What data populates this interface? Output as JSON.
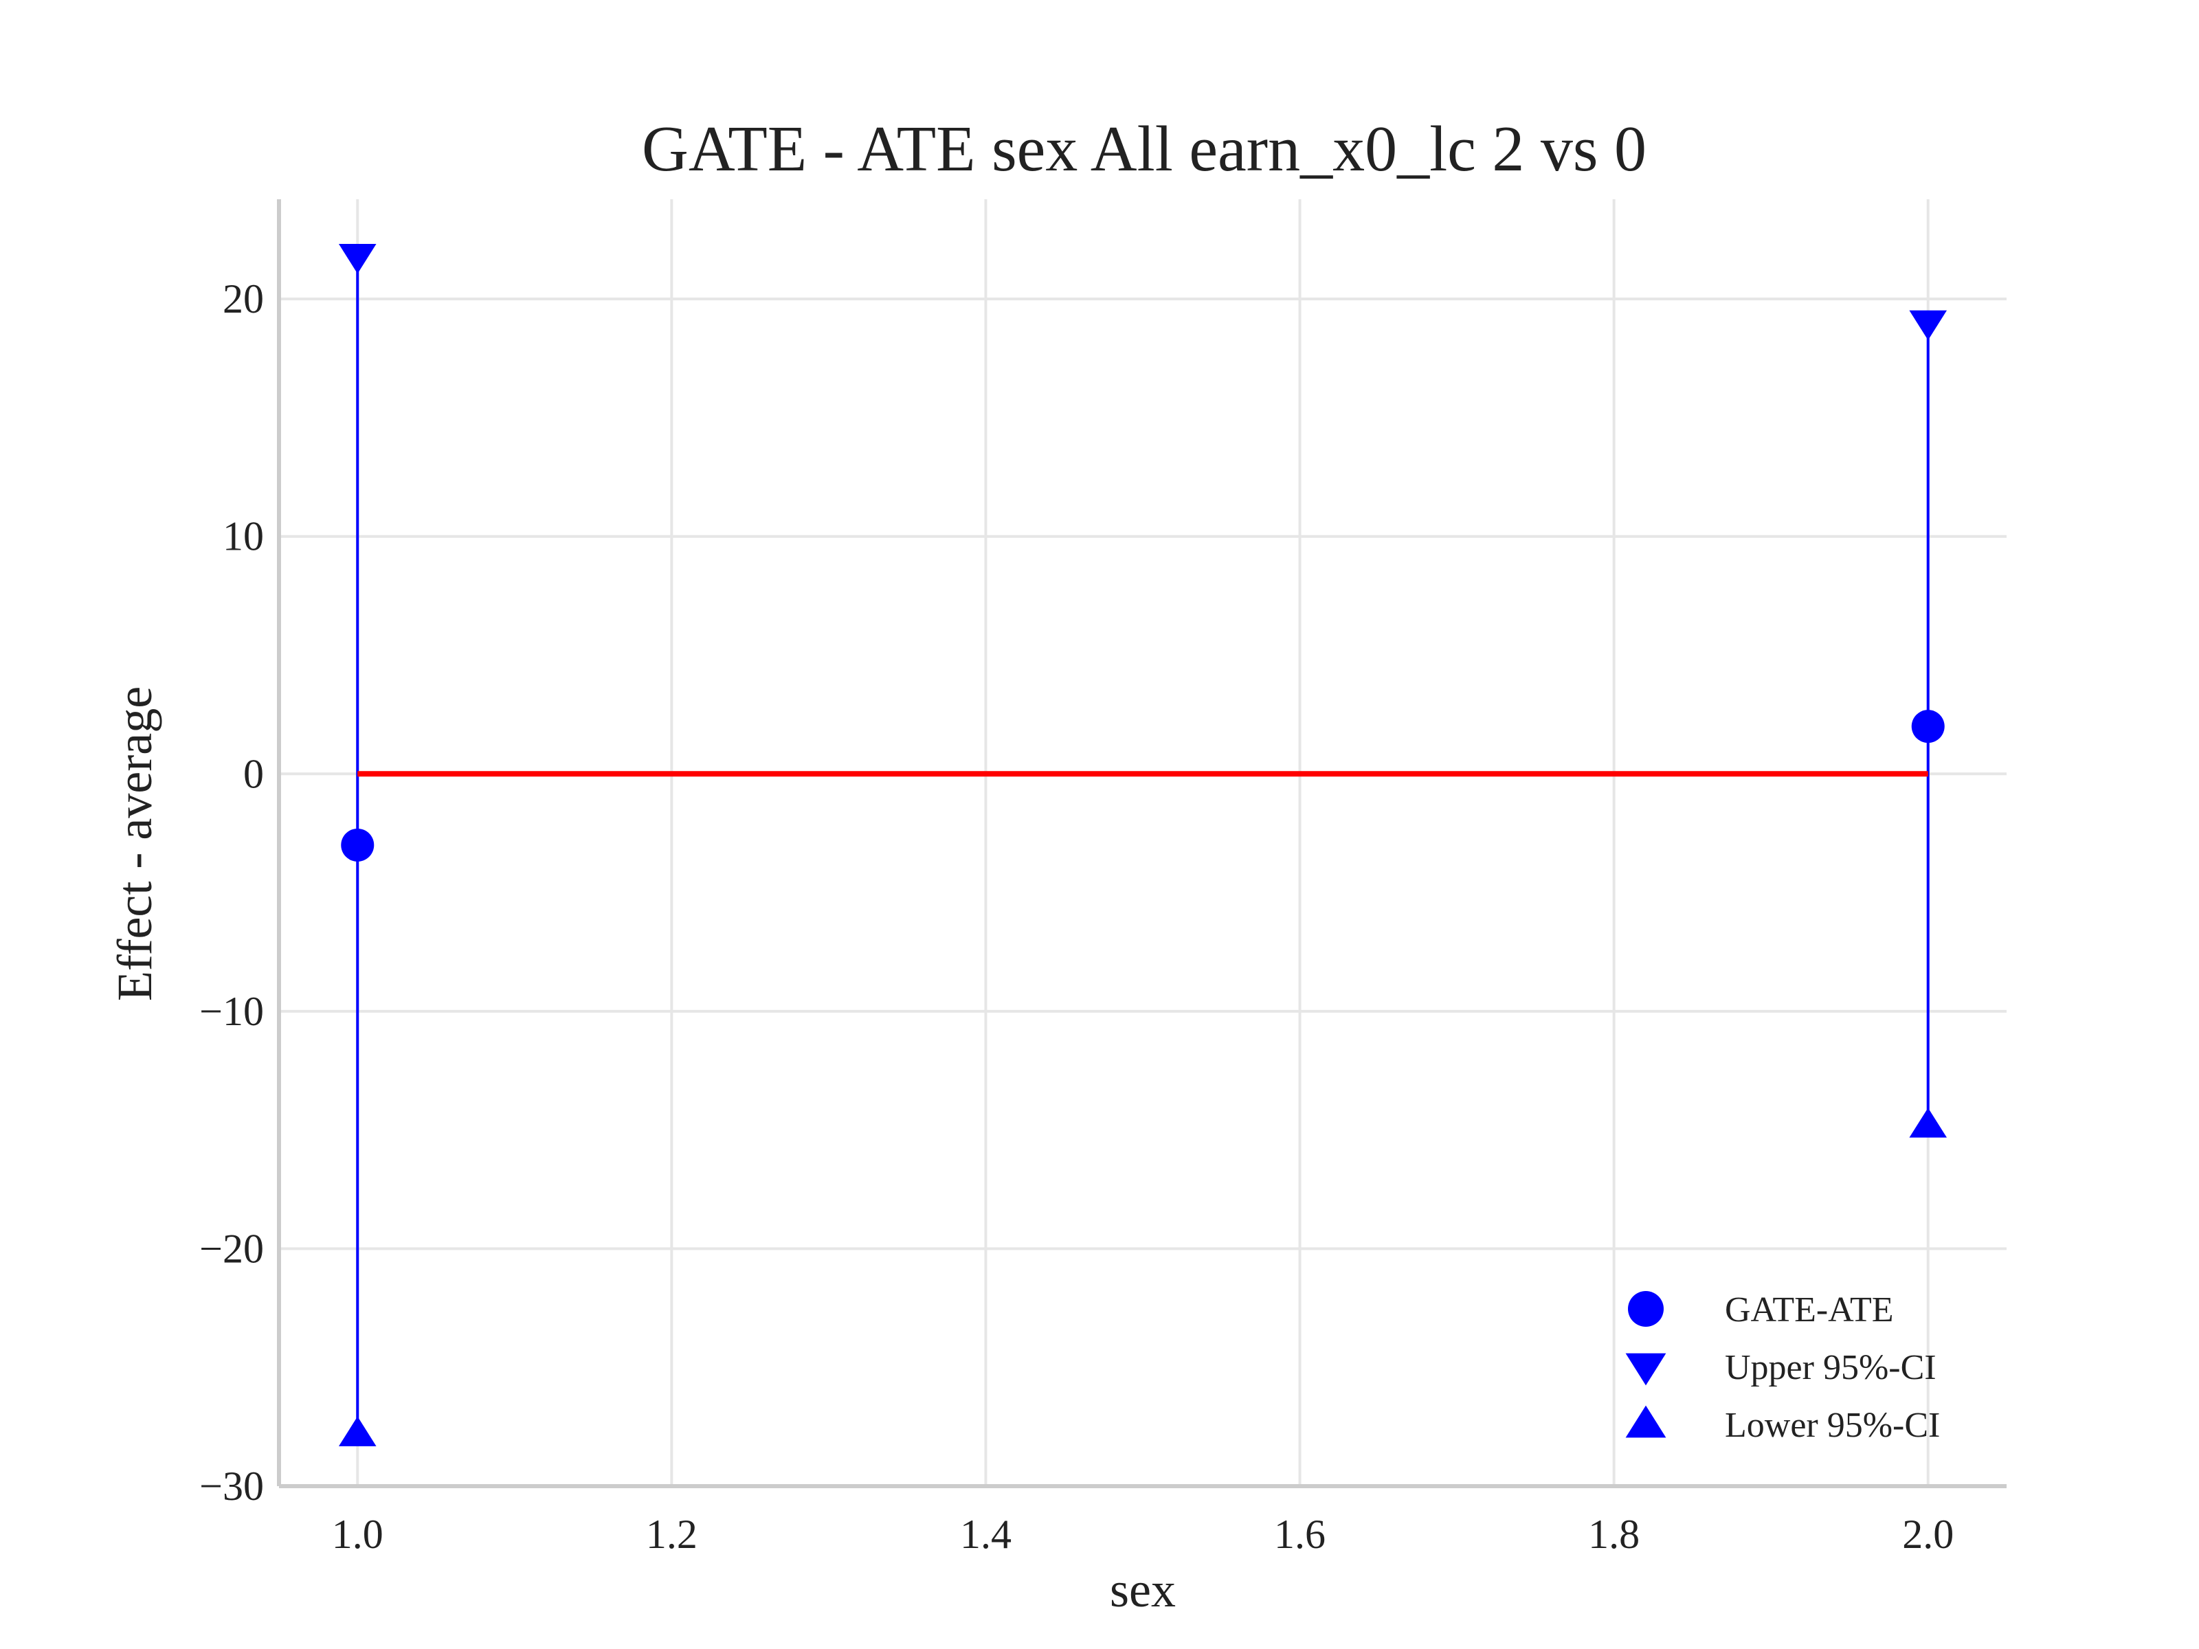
{
  "chart_data": {
    "type": "scatter",
    "title": "GATE - ATE sex All earn_x0_lc  2 vs 0",
    "xlabel": "sex",
    "ylabel": "Effect - average",
    "xlim": [
      0.95,
      2.05
    ],
    "ylim": [
      -30,
      24.2
    ],
    "xticks": [
      1.0,
      1.2,
      1.4,
      1.6,
      1.8,
      2.0
    ],
    "xtick_labels": [
      "1.0",
      "1.2",
      "1.4",
      "1.6",
      "1.8",
      "2.0"
    ],
    "yticks": [
      -30,
      -20,
      -10,
      0,
      10,
      20
    ],
    "ytick_labels": [
      "−30",
      "−20",
      "−10",
      "0",
      "10",
      "20"
    ],
    "grid": true,
    "legend_position": "lower-right",
    "series": [
      {
        "name": "GATE-ATE",
        "marker": "circle",
        "color": "#0000ff",
        "x": [
          1.0,
          2.0
        ],
        "y": [
          -3.0,
          2.0
        ]
      },
      {
        "name": "Upper 95%-CI",
        "marker": "triangle-down",
        "color": "#0000ff",
        "x": [
          1.0,
          2.0
        ],
        "y": [
          21.8,
          19.0
        ]
      },
      {
        "name": "Lower 95%-CI",
        "marker": "triangle-up",
        "color": "#0000ff",
        "x": [
          1.0,
          2.0
        ],
        "y": [
          -27.8,
          -14.8
        ]
      }
    ],
    "reference_line": {
      "y": 0,
      "x": [
        1.0,
        2.0
      ],
      "color": "#ff0000"
    },
    "interval_color": "#0000ff"
  }
}
